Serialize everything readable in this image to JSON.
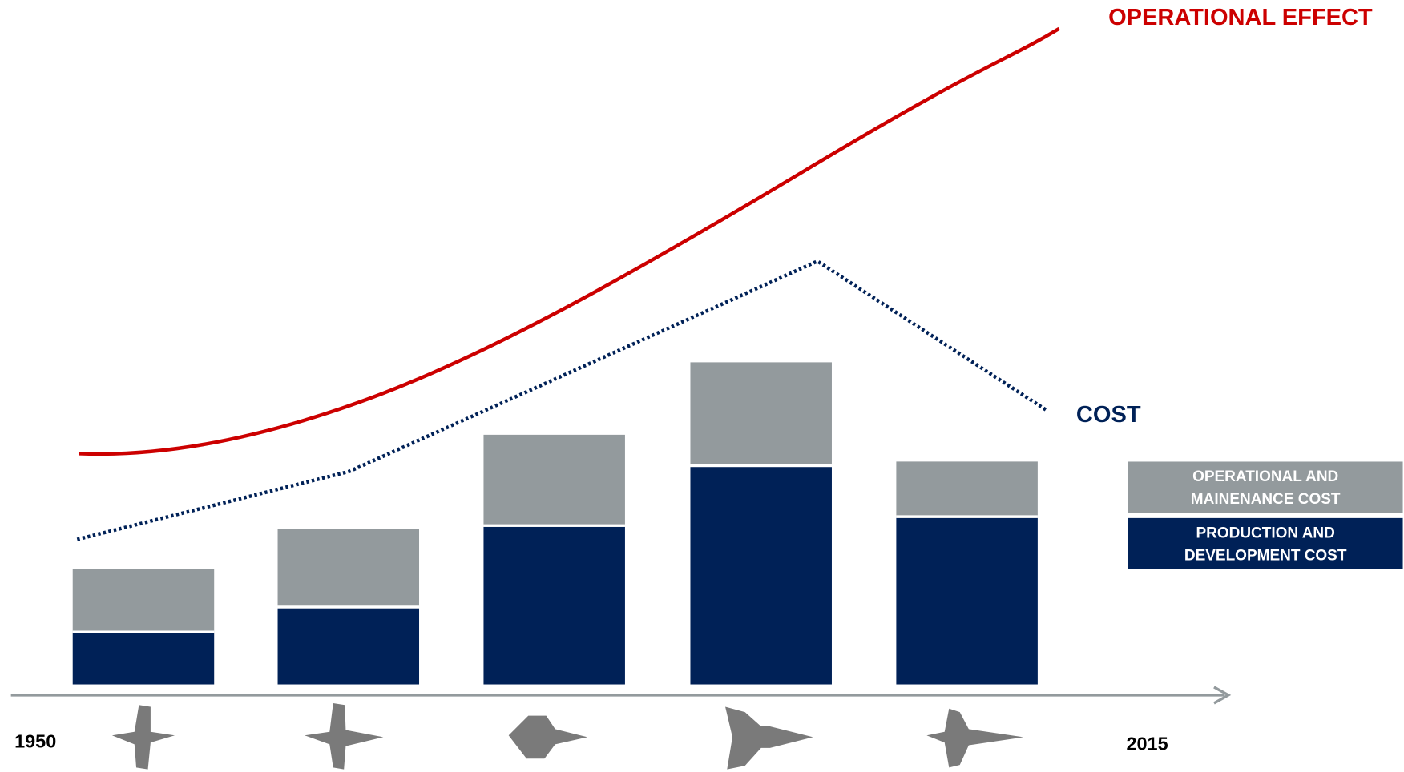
{
  "chart_data": {
    "type": "bar",
    "stacked": true,
    "title": "OPERATIONAL EFFECT",
    "cost_label": "COST",
    "start_label": "1950",
    "end_label": "2015",
    "series": [
      {
        "name": "PRODUCTION AND DEVELOPMENT COST",
        "color": "#002157",
        "values": [
          57,
          85,
          176,
          243,
          186
        ]
      },
      {
        "name": "OPERATIONAL AND MAINENANCE COST",
        "color": "#939a9d",
        "values": [
          72,
          89,
          103,
          117,
          63
        ]
      }
    ]
  }
}
